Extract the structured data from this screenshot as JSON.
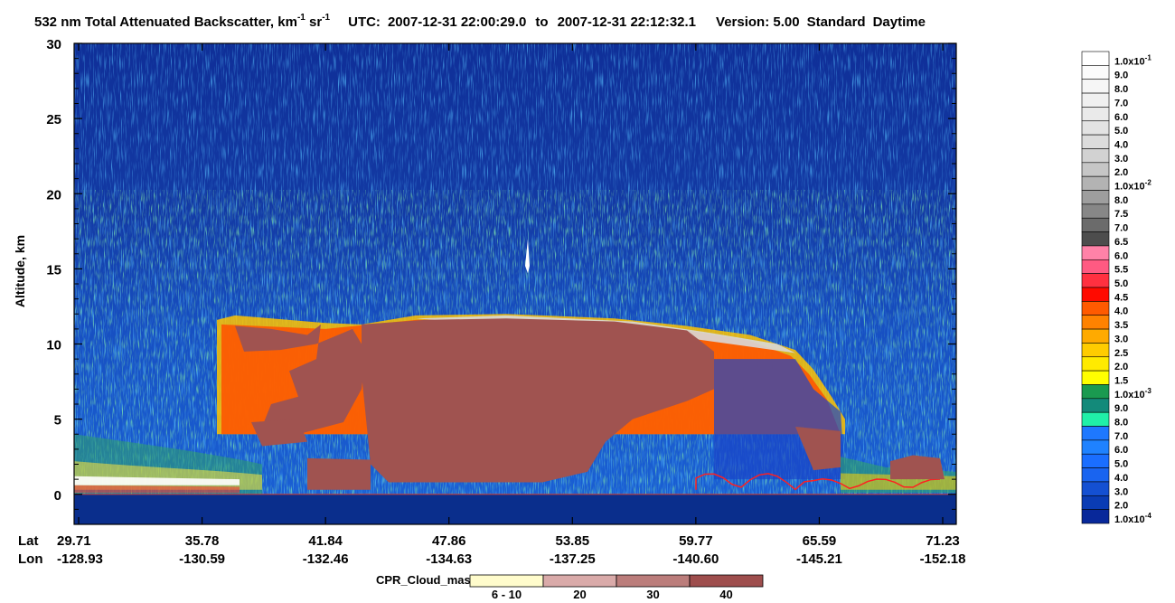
{
  "header": {
    "quantity": "532 nm Total Attenuated Backscatter, km",
    "unit_sup1": "-1",
    "unit_mid": " sr",
    "unit_sup2": "-1",
    "utc_label": "UTC:",
    "utc_start": "2007-12-31 22:00:29.0",
    "to_word": "to",
    "utc_end": "2007-12-31 22:12:32.1",
    "version": "Version: 5.00",
    "product": "Standard",
    "daynight": "Daytime"
  },
  "chart_data": {
    "type": "heatmap",
    "ylabel": "Altitude, km",
    "ylim": [
      -2,
      30
    ],
    "yticks": [
      "30",
      "25",
      "20",
      "15",
      "10",
      "5",
      "0"
    ],
    "row_labels": [
      "Lat",
      "Lon"
    ],
    "lat_ticks": [
      "29.71",
      "35.78",
      "41.84",
      "47.86",
      "53.85",
      "59.77",
      "65.59",
      "71.23"
    ],
    "lon_ticks": [
      "-128.93",
      "-130.59",
      "-132.46",
      "-134.63",
      "-137.25",
      "-140.60",
      "-145.21",
      "-152.18"
    ],
    "surface_altitude_km": 0,
    "tropopause_noise_altitude_km": 20,
    "colorbar": {
      "entries": [
        {
          "label": "1.0x10",
          "exp": "-1",
          "color": "#ffffff"
        },
        {
          "label": "9.0",
          "color": "#fbfbfb"
        },
        {
          "label": "8.0",
          "color": "#f6f6f6"
        },
        {
          "label": "7.0",
          "color": "#f0f0f0"
        },
        {
          "label": "6.0",
          "color": "#eaeaea"
        },
        {
          "label": "5.0",
          "color": "#e3e3e3"
        },
        {
          "label": "4.0",
          "color": "#dcdcdc"
        },
        {
          "label": "3.0",
          "color": "#d2d2d2"
        },
        {
          "label": "2.0",
          "color": "#c6c6c6"
        },
        {
          "label": "1.0x10",
          "exp": "-2",
          "color": "#b3b3b3"
        },
        {
          "label": "8.0",
          "color": "#9e9e9e"
        },
        {
          "label": "7.5",
          "color": "#878787"
        },
        {
          "label": "7.0",
          "color": "#6b6b6b"
        },
        {
          "label": "6.5",
          "color": "#4d4d4d"
        },
        {
          "label": "6.0",
          "color": "#ff82a8"
        },
        {
          "label": "5.5",
          "color": "#ff5a82"
        },
        {
          "label": "5.0",
          "color": "#ff3040"
        },
        {
          "label": "4.5",
          "color": "#ff0a00"
        },
        {
          "label": "4.0",
          "color": "#ff5a00"
        },
        {
          "label": "3.5",
          "color": "#ff8200"
        },
        {
          "label": "3.0",
          "color": "#ffaa00"
        },
        {
          "label": "2.5",
          "color": "#ffcc00"
        },
        {
          "label": "2.0",
          "color": "#ffea00"
        },
        {
          "label": "1.5",
          "color": "#ffff00"
        },
        {
          "label": "1.0x10",
          "exp": "-3",
          "color": "#1a9a50"
        },
        {
          "label": "9.0",
          "color": "#138a7a"
        },
        {
          "label": "8.0",
          "color": "#20f0a8"
        },
        {
          "label": "7.0",
          "color": "#1e78ff"
        },
        {
          "label": "6.0",
          "color": "#1f82ff"
        },
        {
          "label": "5.0",
          "color": "#1a6eff"
        },
        {
          "label": "4.0",
          "color": "#1964f0"
        },
        {
          "label": "3.0",
          "color": "#1450d2"
        },
        {
          "label": "2.0",
          "color": "#0a3cb4"
        },
        {
          "label": "1.0x10",
          "exp": "-4",
          "color": "#08289a"
        }
      ]
    },
    "cloud_mask": {
      "title": "CPR_Cloud_mask",
      "bins": [
        {
          "label": "6 - 10",
          "color": "#fffccc"
        },
        {
          "label": "20",
          "color": "#d9aaa9"
        },
        {
          "label": "30",
          "color": "#bb7d7b"
        },
        {
          "label": "40",
          "color": "#9e4e4d"
        }
      ]
    },
    "cloud_mask_color": "#a05350",
    "lidar_colors": {
      "background": "#102f9a",
      "clear_air": "#1b63d8",
      "surface": "#0a2e8c"
    }
  }
}
